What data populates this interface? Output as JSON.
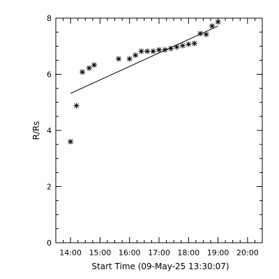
{
  "chart_data": {
    "type": "scatter",
    "xlabel": "Start Time (09-May-25 13:30:07)",
    "ylabel": "R/Rs",
    "xlim": [
      13.5,
      20.5
    ],
    "ylim": [
      0,
      8
    ],
    "x_ticks": [
      {
        "value": 14,
        "label": "14:00"
      },
      {
        "value": 15,
        "label": "15:00"
      },
      {
        "value": 16,
        "label": "16:00"
      },
      {
        "value": 17,
        "label": "17:00"
      },
      {
        "value": 18,
        "label": "18:00"
      },
      {
        "value": 19,
        "label": "19:00"
      },
      {
        "value": 20,
        "label": "20:00"
      }
    ],
    "y_ticks": [
      {
        "value": 0,
        "label": "0"
      },
      {
        "value": 2,
        "label": "2"
      },
      {
        "value": 4,
        "label": "4"
      },
      {
        "value": 6,
        "label": "6"
      },
      {
        "value": 8,
        "label": "8"
      }
    ],
    "x_minor_step": 0.25,
    "y_minor_step": 0.5,
    "grid": false,
    "marker": "asterisk",
    "points": [
      [
        14.0,
        3.6
      ],
      [
        14.2,
        4.88
      ],
      [
        14.4,
        6.08
      ],
      [
        14.63,
        6.22
      ],
      [
        14.8,
        6.33
      ],
      [
        15.63,
        6.55
      ],
      [
        16.0,
        6.55
      ],
      [
        16.2,
        6.68
      ],
      [
        16.4,
        6.82
      ],
      [
        16.6,
        6.82
      ],
      [
        16.8,
        6.82
      ],
      [
        17.0,
        6.87
      ],
      [
        17.2,
        6.87
      ],
      [
        17.4,
        6.92
      ],
      [
        17.6,
        6.97
      ],
      [
        17.8,
        7.02
      ],
      [
        18.0,
        7.07
      ],
      [
        18.2,
        7.1
      ],
      [
        18.4,
        7.45
      ],
      [
        18.6,
        7.42
      ],
      [
        18.8,
        7.72
      ],
      [
        19.0,
        7.87
      ]
    ],
    "fit_line": [
      [
        14.0,
        5.32
      ],
      [
        19.0,
        7.72
      ]
    ]
  }
}
